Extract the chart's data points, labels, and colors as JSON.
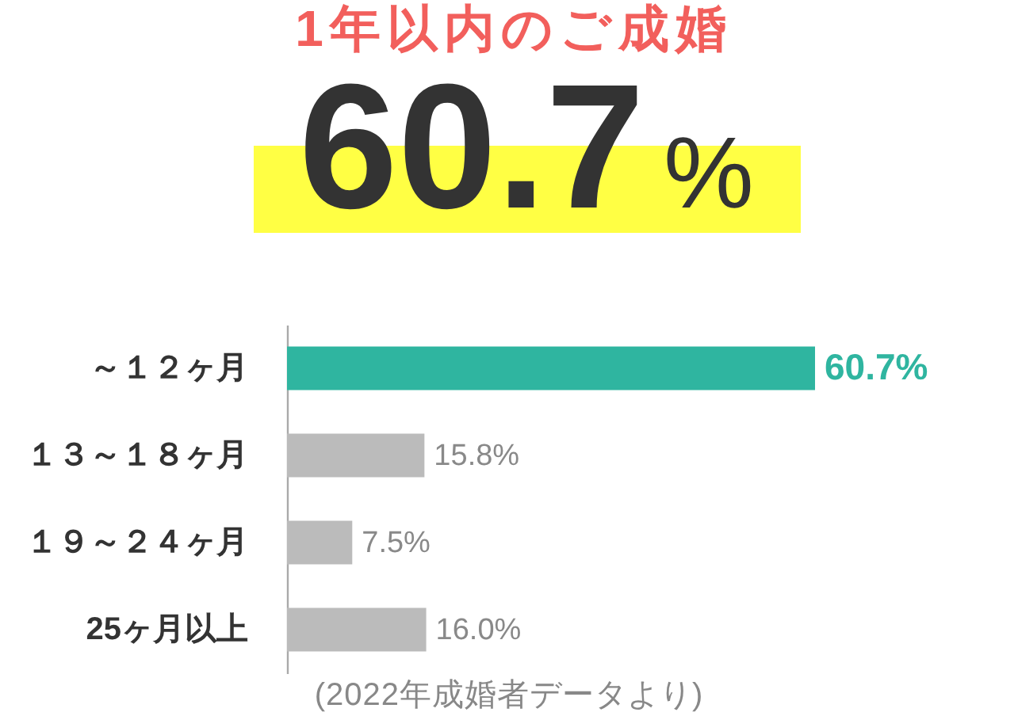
{
  "chart_data": {
    "type": "bar",
    "orientation": "horizontal",
    "title": "1年以内のご成婚",
    "subtitle": "60.7%",
    "categories": [
      "～１２ヶ月",
      "１３～１８ヶ月",
      "１９～２４ヶ月",
      "25ヶ月以上"
    ],
    "values": [
      60.7,
      15.8,
      7.5,
      16.0
    ],
    "colors": [
      "#2fb5a0",
      "#bbbbbb",
      "#bbbbbb",
      "#bbbbbb"
    ],
    "value_labels": [
      "60.7%",
      "15.8%",
      "7.5%",
      "16.0%"
    ],
    "annotations": [
      "(2022年成婚者データより)"
    ]
  }
}
